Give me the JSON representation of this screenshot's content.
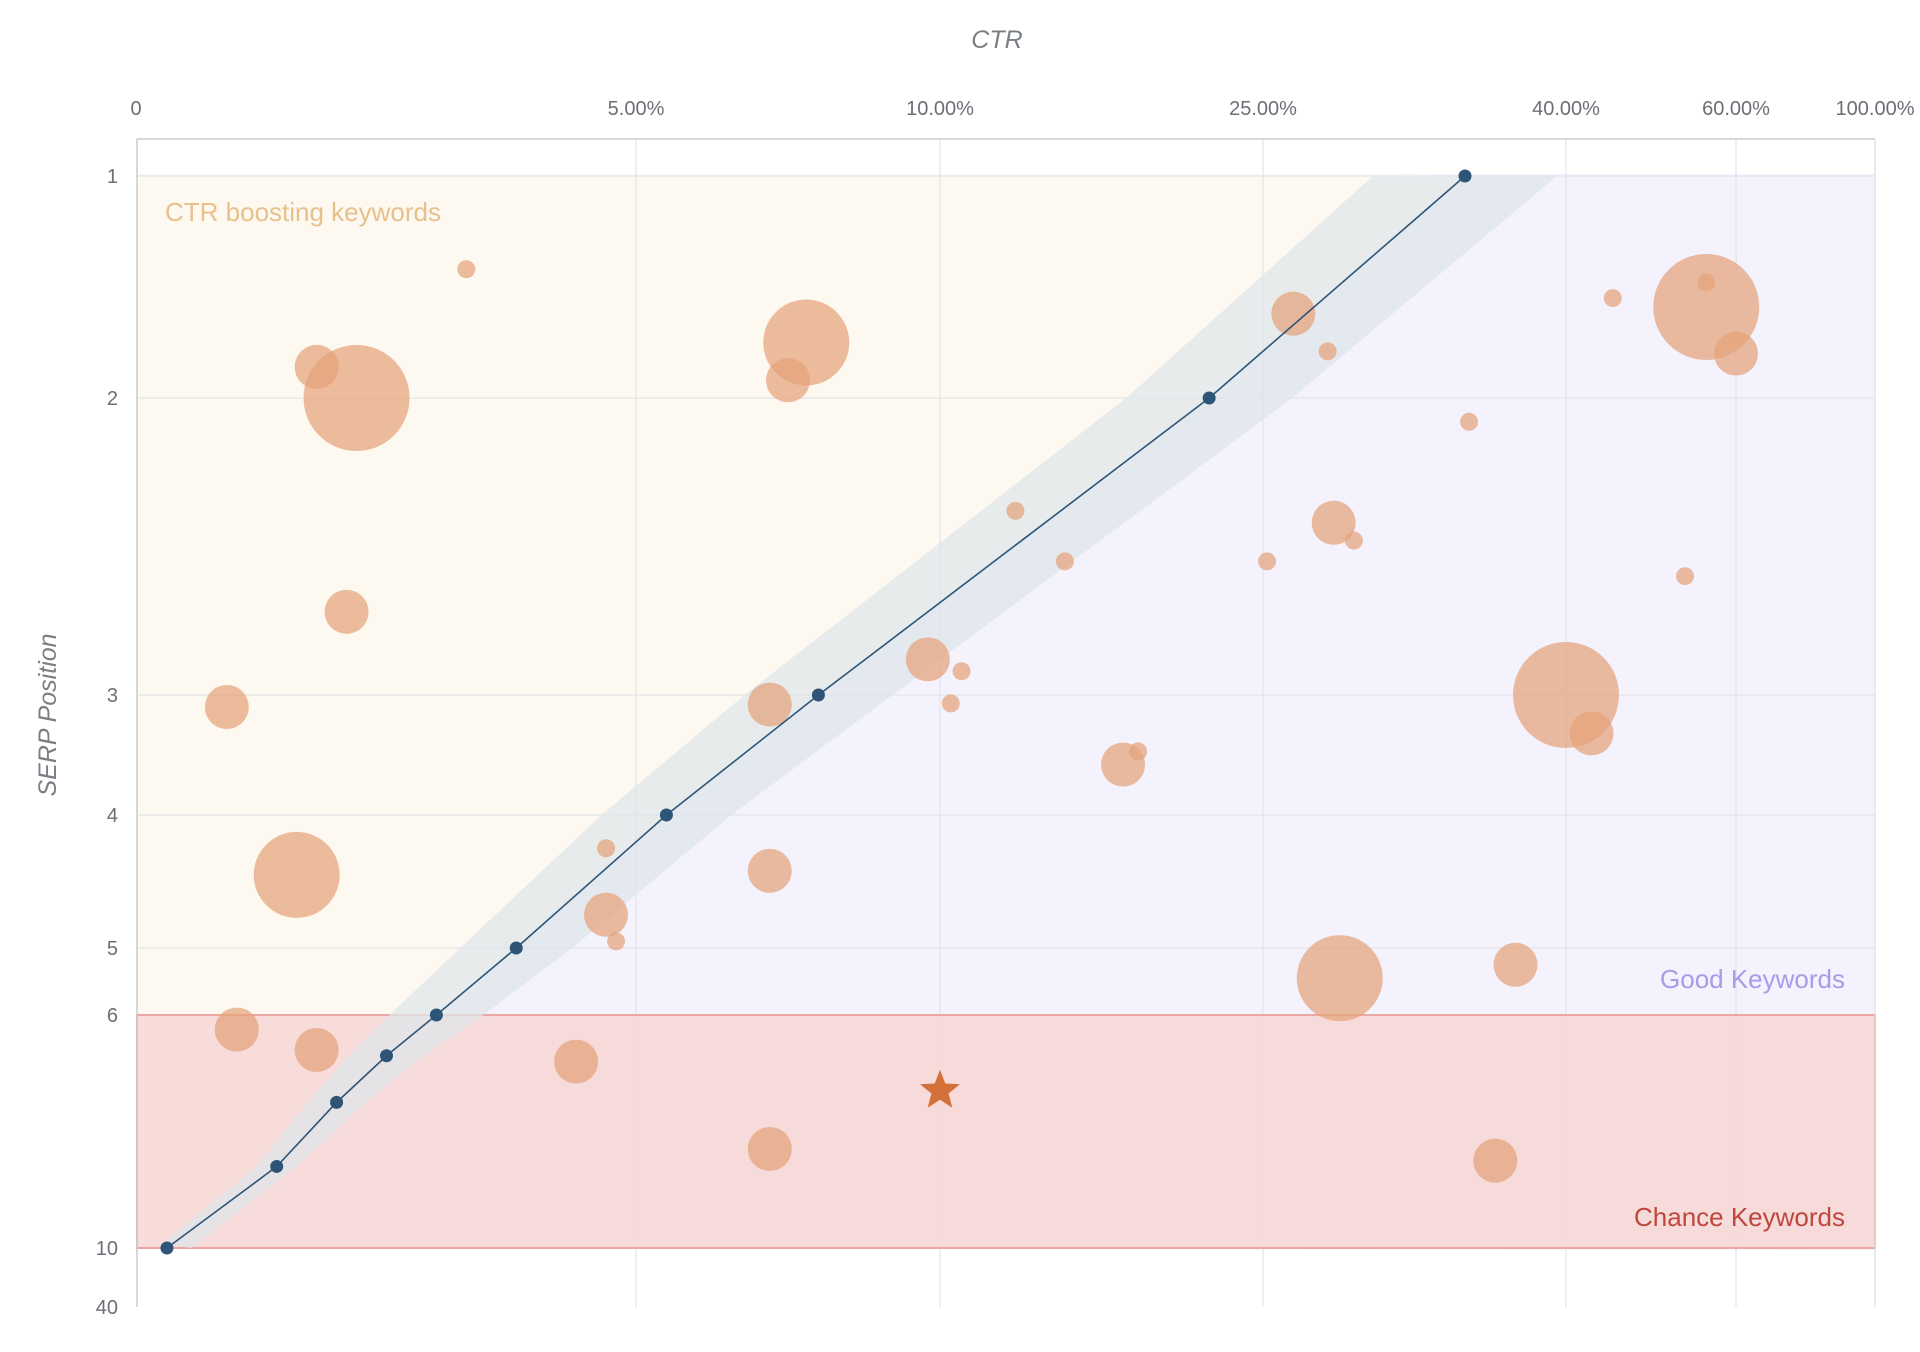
{
  "chart_data": {
    "type": "bubble-scatter",
    "x_axis": {
      "title": "CTR",
      "scale": "piecewise-log",
      "ticks": [
        {
          "value": 0,
          "label": "0"
        },
        {
          "value": 5,
          "label": "5.00%"
        },
        {
          "value": 10,
          "label": "10.00%"
        },
        {
          "value": 25,
          "label": "25.00%"
        },
        {
          "value": 40,
          "label": "40.00%"
        },
        {
          "value": 60,
          "label": "60.00%"
        },
        {
          "value": 100,
          "label": "100.00%"
        }
      ]
    },
    "y_axis": {
      "title": "SERP Position",
      "scale": "piecewise",
      "ticks": [
        {
          "value": 1,
          "label": "1"
        },
        {
          "value": 2,
          "label": "2"
        },
        {
          "value": 3,
          "label": "3"
        },
        {
          "value": 4,
          "label": "4"
        },
        {
          "value": 5,
          "label": "5"
        },
        {
          "value": 6,
          "label": "6"
        },
        {
          "value": 10,
          "label": "10"
        },
        {
          "value": 40,
          "label": "40"
        }
      ]
    },
    "zones": {
      "ctr_boosting": {
        "label": "CTR boosting keywords",
        "color": "#e8c08a",
        "fill": "#fdf9f1"
      },
      "good": {
        "label": "Good Keywords",
        "color": "#a99be8",
        "fill": "#f4f2fd"
      },
      "chance": {
        "label": "Chance Keywords",
        "color": "#c0463d",
        "fill": "#f6d8d6",
        "y_from": 6,
        "y_to": 10
      }
    },
    "trend_line": {
      "color": "#2e5578",
      "band_color": "#dfe6ea",
      "points": [
        {
          "ctr": 0.3,
          "pos": 10
        },
        {
          "ctr": 1.4,
          "pos": 8.6
        },
        {
          "ctr": 2.0,
          "pos": 7.5
        },
        {
          "ctr": 2.5,
          "pos": 6.7
        },
        {
          "ctr": 3.0,
          "pos": 6.0
        },
        {
          "ctr": 3.8,
          "pos": 5.0
        },
        {
          "ctr": 5.5,
          "pos": 4.0
        },
        {
          "ctr": 8.0,
          "pos": 3.0
        },
        {
          "ctr": 22.5,
          "pos": 2.0
        },
        {
          "ctr": 35.0,
          "pos": 1.0
        }
      ]
    },
    "bubble_color": "#e4a27a",
    "bubbles": [
      {
        "ctr": 3.3,
        "pos": 1.42,
        "size": 1
      },
      {
        "ctr": 1.8,
        "pos": 1.86,
        "size": 2
      },
      {
        "ctr": 2.2,
        "pos": 2.0,
        "size": 5
      },
      {
        "ctr": 2.1,
        "pos": 2.72,
        "size": 2
      },
      {
        "ctr": 0.9,
        "pos": 3.1,
        "size": 2
      },
      {
        "ctr": 1.6,
        "pos": 4.45,
        "size": 4
      },
      {
        "ctr": 4.7,
        "pos": 4.25,
        "size": 1
      },
      {
        "ctr": 4.7,
        "pos": 4.75,
        "size": 2
      },
      {
        "ctr": 4.8,
        "pos": 4.95,
        "size": 1
      },
      {
        "ctr": 7.8,
        "pos": 1.75,
        "size": 4
      },
      {
        "ctr": 7.5,
        "pos": 1.92,
        "size": 2
      },
      {
        "ctr": 9.8,
        "pos": 2.88,
        "size": 2
      },
      {
        "ctr": 7.2,
        "pos": 3.08,
        "size": 2
      },
      {
        "ctr": 7.2,
        "pos": 4.42,
        "size": 2
      },
      {
        "ctr": 11.0,
        "pos": 2.92,
        "size": 1
      },
      {
        "ctr": 10.5,
        "pos": 3.07,
        "size": 1
      },
      {
        "ctr": 13.5,
        "pos": 2.38,
        "size": 1
      },
      {
        "ctr": 15.8,
        "pos": 2.55,
        "size": 1
      },
      {
        "ctr": 18.5,
        "pos": 3.58,
        "size": 2
      },
      {
        "ctr": 19.2,
        "pos": 3.47,
        "size": 1
      },
      {
        "ctr": 26.5,
        "pos": 1.62,
        "size": 2
      },
      {
        "ctr": 28.2,
        "pos": 1.79,
        "size": 1
      },
      {
        "ctr": 25.2,
        "pos": 2.55,
        "size": 1
      },
      {
        "ctr": 28.5,
        "pos": 2.42,
        "size": 2
      },
      {
        "ctr": 29.5,
        "pos": 2.48,
        "size": 1
      },
      {
        "ctr": 28.8,
        "pos": 5.45,
        "size": 4
      },
      {
        "ctr": 35.2,
        "pos": 2.08,
        "size": 1
      },
      {
        "ctr": 40.0,
        "pos": 3.0,
        "size": 5
      },
      {
        "ctr": 43.0,
        "pos": 3.32,
        "size": 2
      },
      {
        "ctr": 37.5,
        "pos": 5.25,
        "size": 2
      },
      {
        "ctr": 45.5,
        "pos": 1.55,
        "size": 1
      },
      {
        "ctr": 56.5,
        "pos": 1.59,
        "size": 5
      },
      {
        "ctr": 56.5,
        "pos": 1.48,
        "size": 1
      },
      {
        "ctr": 60.0,
        "pos": 1.8,
        "size": 2
      },
      {
        "ctr": 54.0,
        "pos": 2.6,
        "size": 1
      },
      {
        "ctr": 1.0,
        "pos": 6.25,
        "size": 2
      },
      {
        "ctr": 1.8,
        "pos": 6.6,
        "size": 2
      },
      {
        "ctr": 4.4,
        "pos": 6.8,
        "size": 2
      },
      {
        "ctr": 7.2,
        "pos": 8.3,
        "size": 2
      },
      {
        "ctr": 36.5,
        "pos": 8.5,
        "size": 2
      }
    ],
    "highlight": {
      "ctr": 10.0,
      "pos": 7.3,
      "marker": "star",
      "color": "#d4703a"
    }
  }
}
